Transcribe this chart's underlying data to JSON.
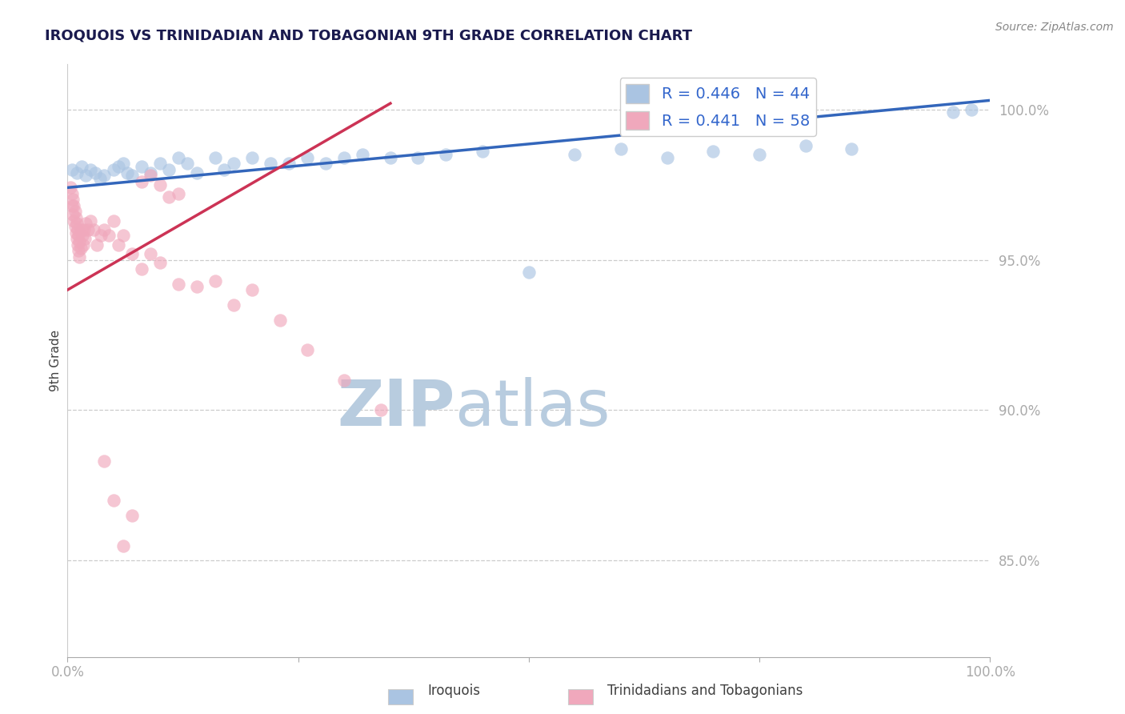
{
  "title": "IROQUOIS VS TRINIDADIAN AND TOBAGONIAN 9TH GRADE CORRELATION CHART",
  "source_text": "Source: ZipAtlas.com",
  "ylabel": "9th Grade",
  "legend_blue_r": "R = 0.446",
  "legend_blue_n": "N = 44",
  "legend_pink_r": "R = 0.441",
  "legend_pink_n": "N = 58",
  "ytick_labels_right": [
    "100.0%",
    "95.0%",
    "90.0%",
    "85.0%"
  ],
  "ytick_values": [
    1.0,
    0.95,
    0.9,
    0.85
  ],
  "xlim": [
    0.0,
    1.0
  ],
  "ylim": [
    0.818,
    1.015
  ],
  "blue_color": "#aac4e2",
  "pink_color": "#f0a8bc",
  "blue_line_color": "#3366bb",
  "pink_line_color": "#cc3355",
  "legend_text_color": "#3366cc",
  "title_color": "#1a1a4e",
  "watermark_zip_color": "#c8d8ee",
  "watermark_atlas_color": "#c8d8ee",
  "grid_color": "#cccccc",
  "blue_scatter_x": [
    0.005,
    0.01,
    0.015,
    0.02,
    0.025,
    0.03,
    0.035,
    0.04,
    0.05,
    0.055,
    0.06,
    0.065,
    0.07,
    0.08,
    0.09,
    0.1,
    0.11,
    0.12,
    0.13,
    0.14,
    0.16,
    0.17,
    0.18,
    0.2,
    0.22,
    0.24,
    0.26,
    0.28,
    0.3,
    0.32,
    0.35,
    0.38,
    0.41,
    0.45,
    0.5,
    0.55,
    0.6,
    0.65,
    0.7,
    0.75,
    0.8,
    0.85,
    0.96,
    0.98
  ],
  "blue_scatter_y": [
    0.98,
    0.979,
    0.981,
    0.978,
    0.98,
    0.979,
    0.977,
    0.978,
    0.98,
    0.981,
    0.982,
    0.979,
    0.978,
    0.981,
    0.979,
    0.982,
    0.98,
    0.984,
    0.982,
    0.979,
    0.984,
    0.98,
    0.982,
    0.984,
    0.982,
    0.982,
    0.984,
    0.982,
    0.984,
    0.985,
    0.984,
    0.984,
    0.985,
    0.986,
    0.946,
    0.985,
    0.987,
    0.984,
    0.986,
    0.985,
    0.988,
    0.987,
    0.999,
    1.0
  ],
  "pink_scatter_x": [
    0.003,
    0.005,
    0.005,
    0.006,
    0.006,
    0.007,
    0.007,
    0.008,
    0.008,
    0.009,
    0.009,
    0.01,
    0.01,
    0.011,
    0.011,
    0.012,
    0.012,
    0.013,
    0.013,
    0.014,
    0.015,
    0.016,
    0.017,
    0.018,
    0.019,
    0.02,
    0.022,
    0.025,
    0.028,
    0.032,
    0.036,
    0.04,
    0.045,
    0.05,
    0.055,
    0.06,
    0.07,
    0.08,
    0.09,
    0.1,
    0.12,
    0.14,
    0.16,
    0.18,
    0.2,
    0.23,
    0.26,
    0.3,
    0.34,
    0.08,
    0.09,
    0.1,
    0.11,
    0.12,
    0.04,
    0.05,
    0.06,
    0.07
  ],
  "pink_scatter_y": [
    0.974,
    0.972,
    0.968,
    0.97,
    0.965,
    0.968,
    0.963,
    0.966,
    0.961,
    0.964,
    0.959,
    0.962,
    0.957,
    0.96,
    0.955,
    0.958,
    0.953,
    0.956,
    0.951,
    0.954,
    0.96,
    0.958,
    0.955,
    0.96,
    0.957,
    0.962,
    0.96,
    0.963,
    0.96,
    0.955,
    0.958,
    0.96,
    0.958,
    0.963,
    0.955,
    0.958,
    0.952,
    0.947,
    0.952,
    0.949,
    0.942,
    0.941,
    0.943,
    0.935,
    0.94,
    0.93,
    0.92,
    0.91,
    0.9,
    0.976,
    0.978,
    0.975,
    0.971,
    0.972,
    0.883,
    0.87,
    0.855,
    0.865
  ],
  "blue_line_x": [
    0.0,
    1.0
  ],
  "blue_line_y": [
    0.974,
    1.003
  ],
  "pink_line_x": [
    0.0,
    0.35
  ],
  "pink_line_y": [
    0.94,
    1.002
  ]
}
